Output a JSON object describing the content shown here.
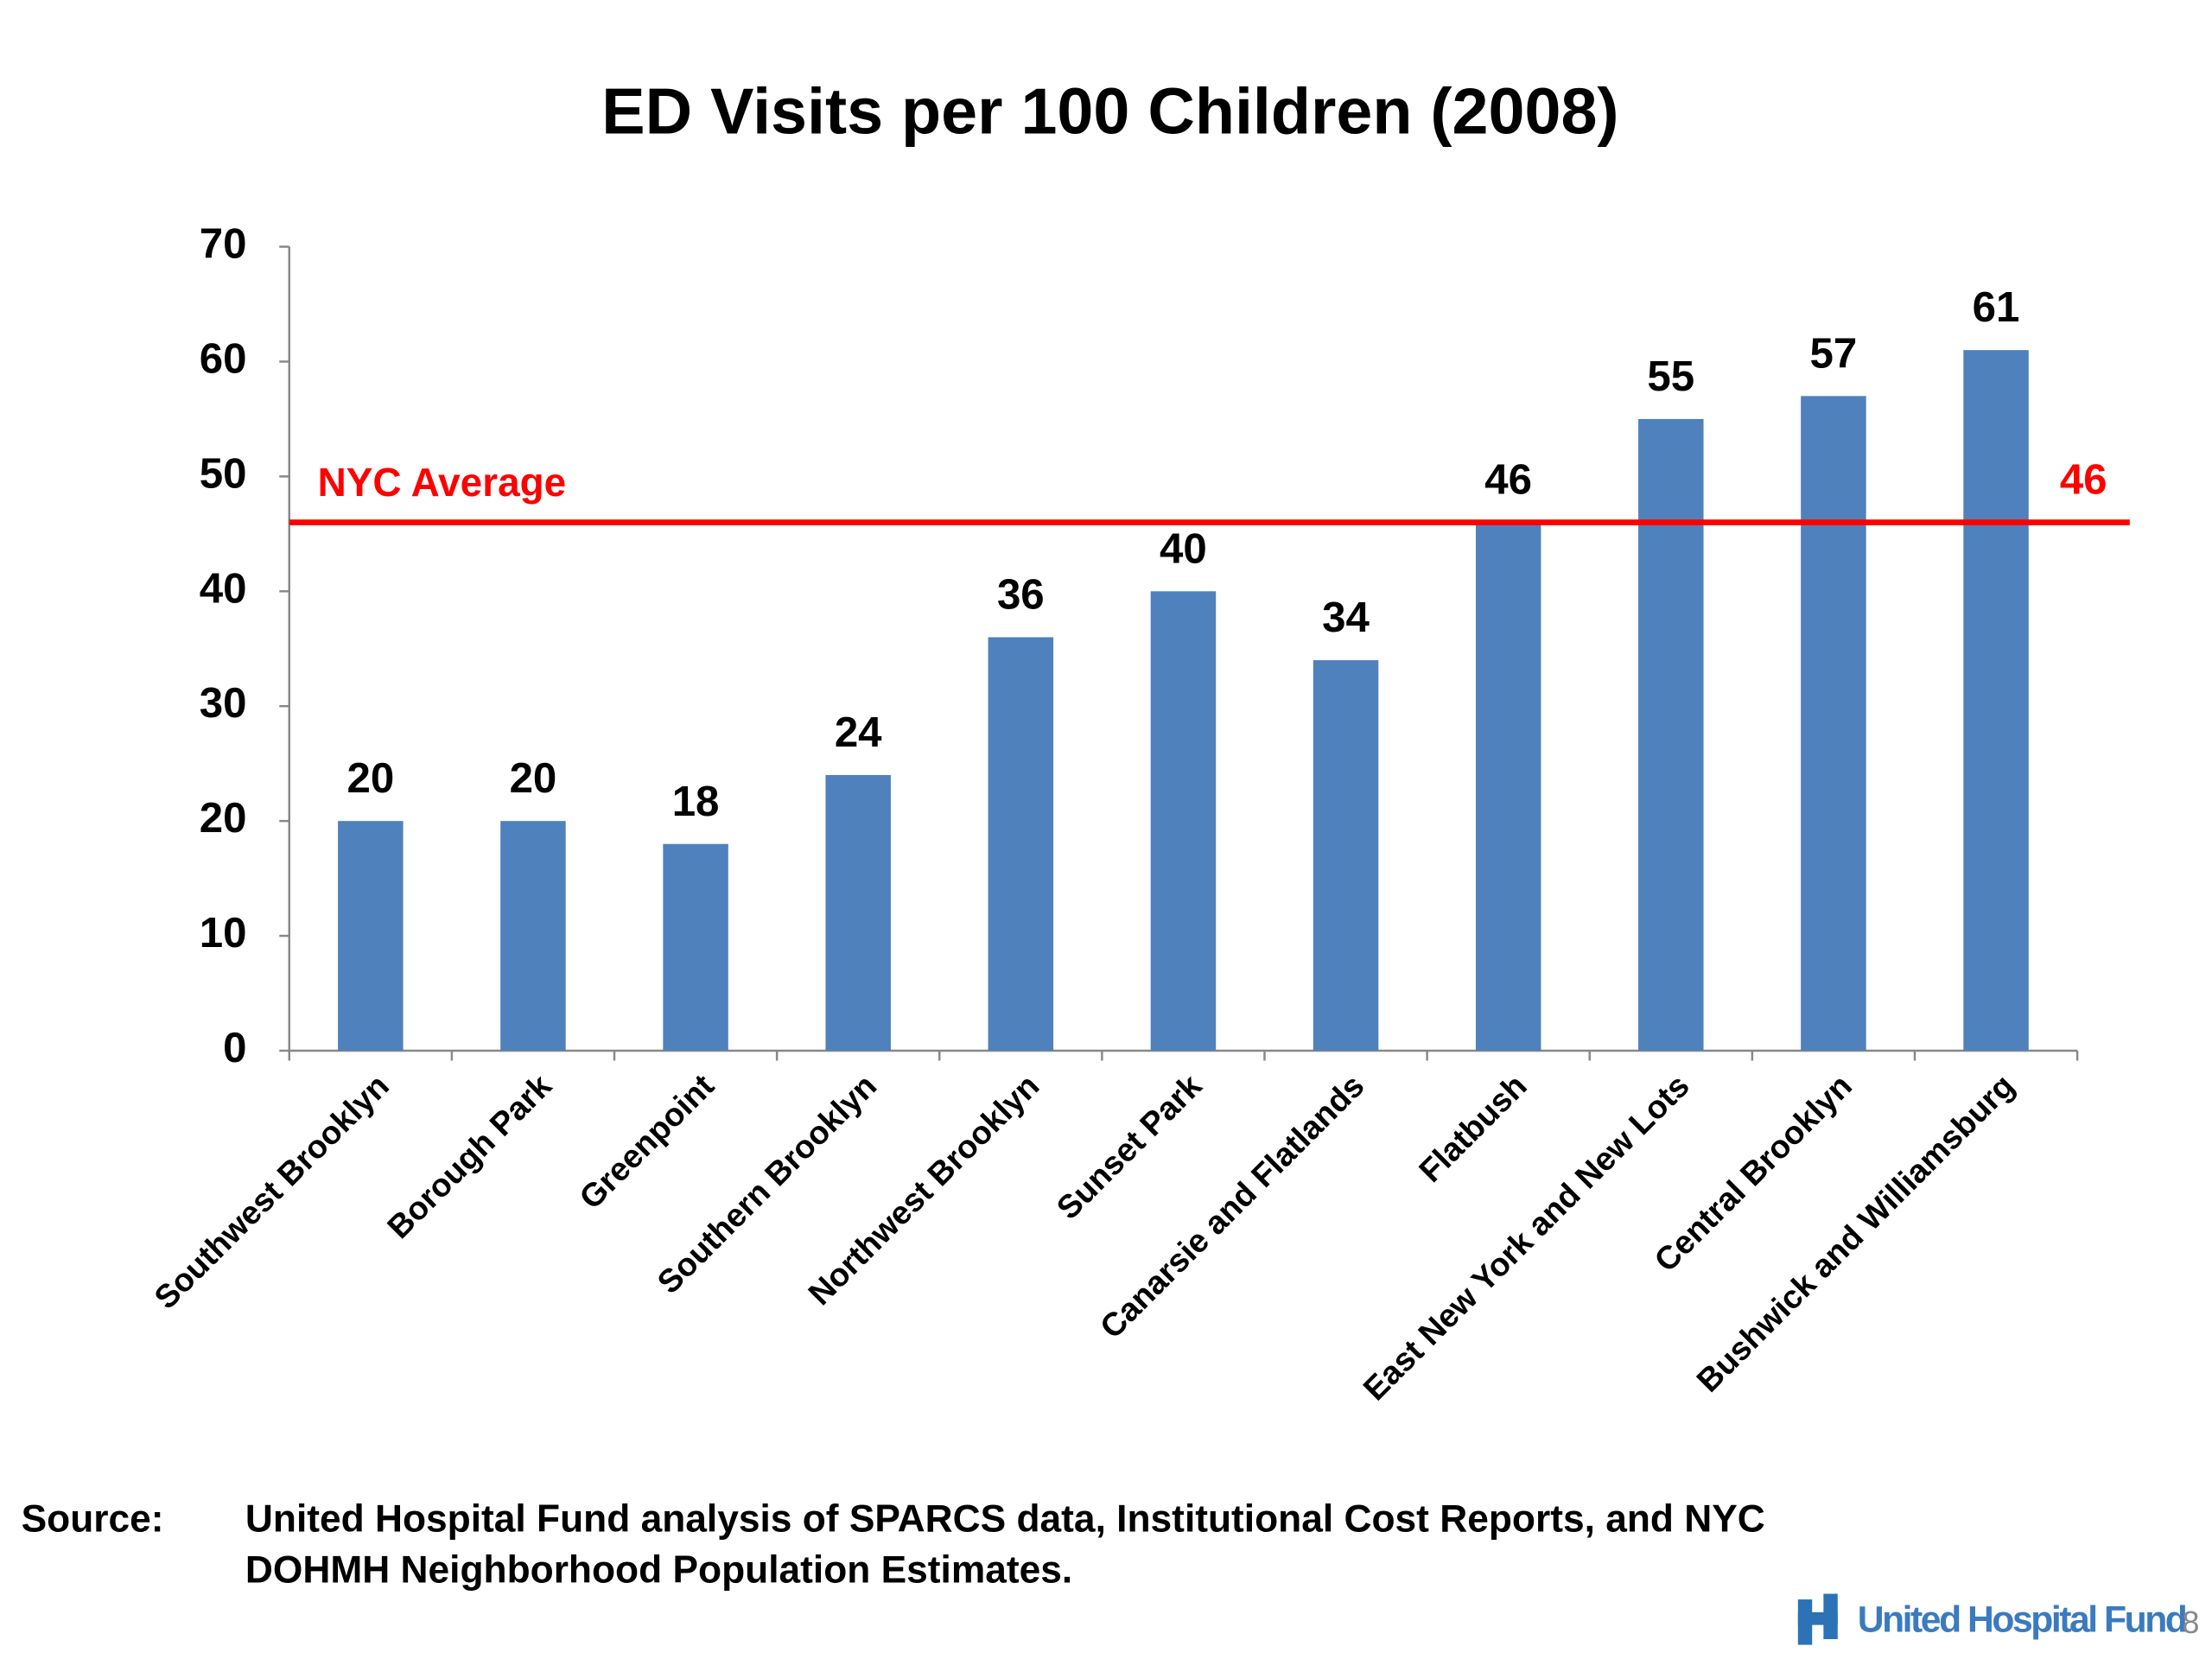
{
  "chart_data": {
    "type": "bar",
    "title": "ED Visits per 100 Children (2008)",
    "categories": [
      "Southwest Brooklyn",
      "Borough Park",
      "Greenpoint",
      "Southern Brooklyn",
      "Northwest Brooklyn",
      "Sunset Park",
      "Canarsie and Flatlands",
      "Flatbush",
      "East New York and New Lots",
      "Central Brooklyn",
      "Bushwick and Williamsburg"
    ],
    "values": [
      20,
      20,
      18,
      24,
      36,
      40,
      34,
      46,
      55,
      57,
      61
    ],
    "color": "#4f81bd",
    "ylim": [
      0,
      70
    ],
    "yticks": [
      0,
      10,
      20,
      30,
      40,
      50,
      60,
      70
    ],
    "reference_line": {
      "label": "NYC Average",
      "value": 46,
      "color": "#ff0000"
    }
  },
  "footer": {
    "source_label": "Source:",
    "source_lines": [
      "United Hospital Fund analysis of SPARCS data, Institutional Cost Reports, and NYC",
      "DOHMH Neighborhood Population Estimates."
    ],
    "logo": "United Hospital Fund",
    "page_number": "8"
  }
}
